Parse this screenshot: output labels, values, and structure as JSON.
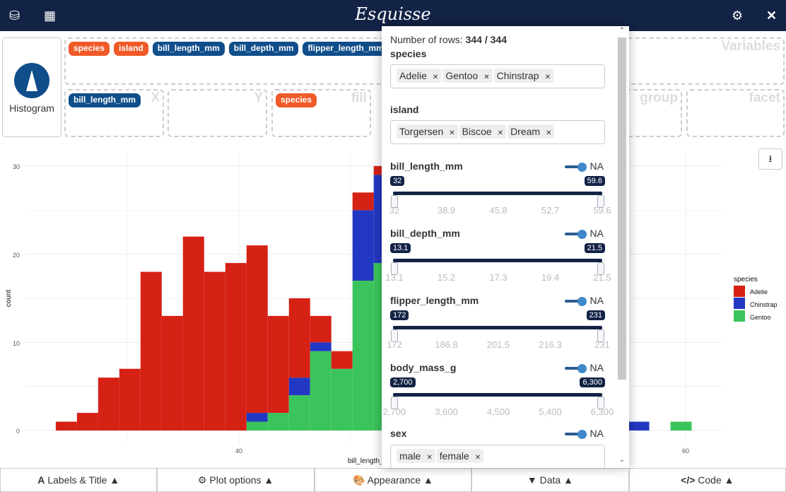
{
  "header": {
    "title": "Esquisse"
  },
  "geom": {
    "label": "Histogram"
  },
  "variables": {
    "caption": "Variables",
    "items": [
      {
        "label": "species",
        "type": "discrete"
      },
      {
        "label": "island",
        "type": "discrete"
      },
      {
        "label": "bill_length_mm",
        "type": "continuous"
      },
      {
        "label": "bill_depth_mm",
        "type": "continuous"
      },
      {
        "label": "flipper_length_mm",
        "type": "continuous"
      }
    ]
  },
  "aes": {
    "x": {
      "caption": "X",
      "value": "bill_length_mm"
    },
    "y": {
      "caption": "Y"
    },
    "fill": {
      "caption": "fill",
      "value": "species"
    },
    "group": {
      "caption": "group"
    },
    "facet": {
      "caption": "facet"
    }
  },
  "bottom": {
    "labels": "Labels & Title",
    "plot": "Plot options",
    "appearance": "Appearance",
    "data": "Data",
    "code": "Code"
  },
  "filter": {
    "rows_label": "Number of rows:",
    "rows_value": "344 / 344",
    "species": {
      "label": "species",
      "tags": [
        "Adelie",
        "Gentoo",
        "Chinstrap"
      ]
    },
    "island": {
      "label": "island",
      "tags": [
        "Torgersen",
        "Biscoe",
        "Dream"
      ]
    },
    "sliders": [
      {
        "label": "bill_length_mm",
        "na": "NA",
        "min": "32",
        "max": "59.6",
        "ticks": [
          "32",
          "38.9",
          "45.8",
          "52.7",
          "59.6"
        ]
      },
      {
        "label": "bill_depth_mm",
        "na": "NA",
        "min": "13.1",
        "max": "21.5",
        "ticks": [
          "13.1",
          "15.2",
          "17.3",
          "19.4",
          "21.5"
        ]
      },
      {
        "label": "flipper_length_mm",
        "na": "NA",
        "min": "172",
        "max": "231",
        "ticks": [
          "172",
          "186.8",
          "201.5",
          "216.3",
          "231"
        ]
      },
      {
        "label": "body_mass_g",
        "na": "NA",
        "min": "2,700",
        "max": "6,300",
        "ticks": [
          "2,700",
          "3,600",
          "4,500",
          "5,400",
          "6,300"
        ]
      }
    ],
    "sex": {
      "label": "sex",
      "na": "NA",
      "tags": [
        "male",
        "female"
      ]
    }
  },
  "chart_data": {
    "type": "bar",
    "stacked": true,
    "xlabel": "bill_length_mm",
    "ylabel": "count",
    "xlim": [
      30.4,
      62.1
    ],
    "ylim": [
      0,
      30
    ],
    "xticks": [
      "40",
      "60"
    ],
    "yticks": [
      "0",
      "10",
      "20",
      "30"
    ],
    "bin_start": 31.8,
    "bin_width": 0.949,
    "legend": {
      "title": "species",
      "position": "right",
      "entries": [
        {
          "name": "Adelie",
          "color": "#d62115"
        },
        {
          "name": "Chinstrap",
          "color": "#2338c2"
        },
        {
          "name": "Gentoo",
          "color": "#3bc45c"
        }
      ]
    },
    "bins": [
      {
        "i": 0,
        "Adelie": 1
      },
      {
        "i": 1,
        "Adelie": 2
      },
      {
        "i": 2,
        "Adelie": 6
      },
      {
        "i": 3,
        "Adelie": 7
      },
      {
        "i": 4,
        "Adelie": 18
      },
      {
        "i": 5,
        "Adelie": 13
      },
      {
        "i": 6,
        "Adelie": 22
      },
      {
        "i": 7,
        "Adelie": 18
      },
      {
        "i": 8,
        "Adelie": 19
      },
      {
        "i": 9,
        "Gentoo": 1,
        "Chinstrap": 1,
        "Adelie": 19
      },
      {
        "i": 10,
        "Gentoo": 2,
        "Adelie": 11
      },
      {
        "i": 11,
        "Gentoo": 4,
        "Chinstrap": 2,
        "Adelie": 9
      },
      {
        "i": 12,
        "Gentoo": 9,
        "Chinstrap": 1,
        "Adelie": 3
      },
      {
        "i": 13,
        "Gentoo": 7,
        "Adelie": 2
      },
      {
        "i": 14,
        "Gentoo": 17,
        "Chinstrap": 8,
        "Adelie": 2
      },
      {
        "i": 15,
        "Gentoo": 19,
        "Chinstrap": 10,
        "Adelie": 1
      },
      {
        "i": 27,
        "Chinstrap": 1
      },
      {
        "i": 29,
        "Gentoo": 1
      }
    ]
  }
}
